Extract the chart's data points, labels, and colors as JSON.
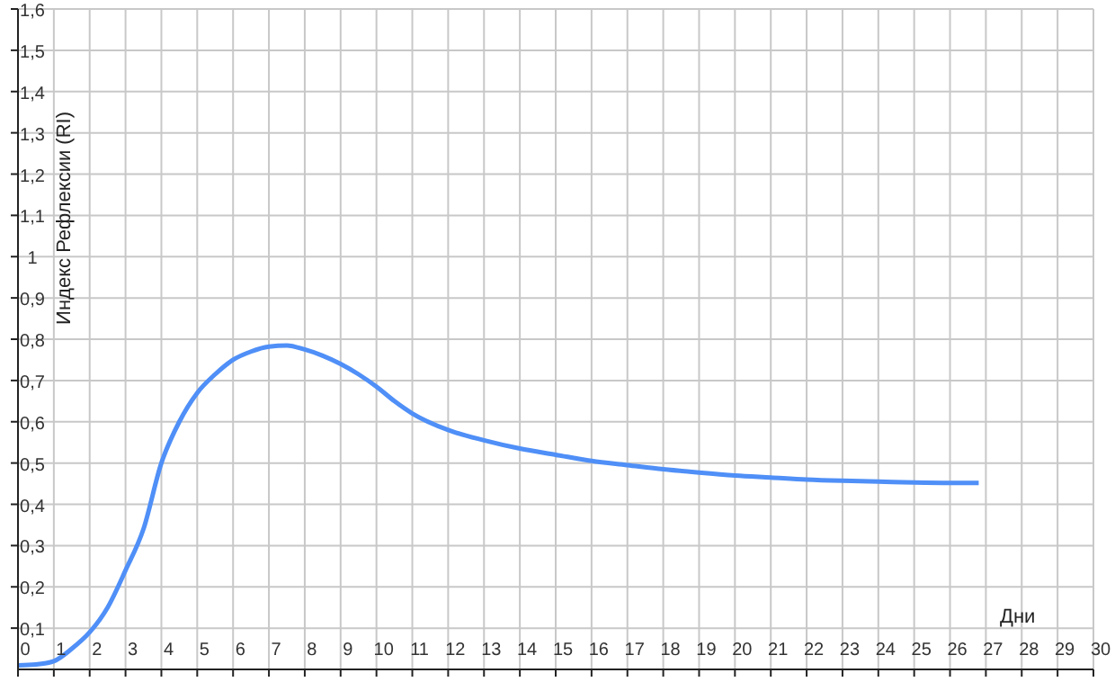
{
  "chart_data": {
    "type": "line",
    "xlabel": "Дни",
    "ylabel": "Индекс Рефлексии (RI)",
    "x": [
      0,
      0.5,
      1,
      1.5,
      2,
      2.5,
      3,
      3.5,
      4,
      4.5,
      5,
      5.5,
      6,
      6.5,
      7,
      7.5,
      8,
      8.5,
      9,
      9.5,
      10,
      10.5,
      11,
      12,
      13,
      14,
      15,
      16,
      17,
      18,
      19,
      20,
      21,
      22,
      23,
      24,
      25,
      26,
      26.8
    ],
    "series": [
      {
        "color": "#4f8ff7",
        "values": [
          0.01,
          0.012,
          0.02,
          0.05,
          0.09,
          0.15,
          0.24,
          0.34,
          0.5,
          0.6,
          0.67,
          0.715,
          0.75,
          0.77,
          0.782,
          0.785,
          0.775,
          0.76,
          0.74,
          0.715,
          0.685,
          0.65,
          0.62,
          0.58,
          0.555,
          0.535,
          0.52,
          0.505,
          0.495,
          0.485,
          0.477,
          0.47,
          0.465,
          0.46,
          0.457,
          0.455,
          0.453,
          0.452,
          0.452
        ]
      }
    ],
    "xlim": [
      0,
      30
    ],
    "xticks": [
      0,
      1,
      2,
      3,
      4,
      5,
      6,
      7,
      8,
      9,
      10,
      11,
      12,
      13,
      14,
      15,
      16,
      17,
      18,
      19,
      20,
      21,
      22,
      23,
      24,
      25,
      26,
      27,
      28,
      29,
      30
    ],
    "ylim": [
      0,
      1.6
    ],
    "yticks": [
      {
        "value": 0.1,
        "label": "0,1"
      },
      {
        "value": 0.2,
        "label": "0,2"
      },
      {
        "value": 0.3,
        "label": "0,3"
      },
      {
        "value": 0.4,
        "label": "0,4"
      },
      {
        "value": 0.5,
        "label": "0,5"
      },
      {
        "value": 0.6,
        "label": "0,6"
      },
      {
        "value": 0.7,
        "label": "0,7"
      },
      {
        "value": 0.8,
        "label": "0,8"
      },
      {
        "value": 0.9,
        "label": "0,9"
      },
      1,
      {
        "value": 1.1,
        "label": "1,1"
      },
      {
        "value": 1.2,
        "label": "1,2"
      },
      {
        "value": 1.3,
        "label": "1,3"
      },
      {
        "value": 1.4,
        "label": "1,4"
      },
      {
        "value": 1.5,
        "label": "1,5"
      },
      {
        "value": 1.6,
        "label": "1,6"
      }
    ],
    "grid": true,
    "marker": "none",
    "line_style": "solid"
  }
}
